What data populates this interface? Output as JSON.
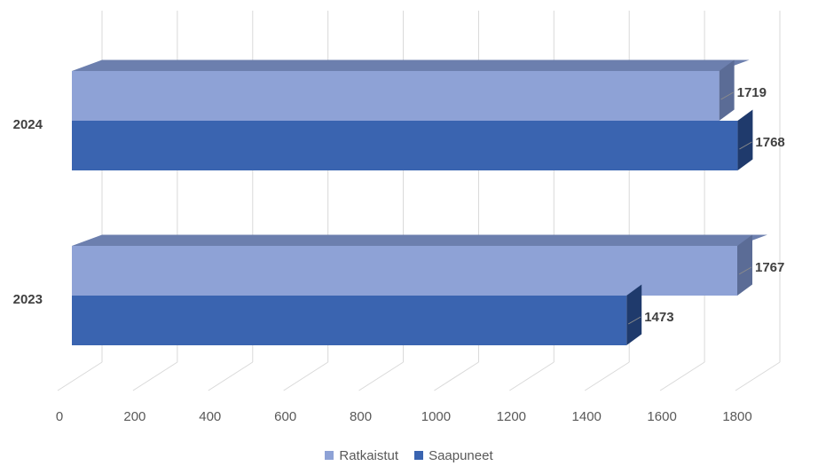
{
  "chart_data": {
    "type": "bar",
    "orientation": "horizontal",
    "style": "3d",
    "categories": [
      "2024",
      "2023"
    ],
    "series": [
      {
        "name": "Ratkaistut",
        "values": [
          1719,
          1767
        ],
        "color": "#8EA2D6",
        "top_color": "#6C7FAE",
        "side_color": "#5B6C96"
      },
      {
        "name": "Saapuneet",
        "values": [
          1768,
          1473
        ],
        "color": "#3A64B0",
        "top_color": "#2E4F8E",
        "side_color": "#1F3A6C"
      }
    ],
    "x_ticks": [
      0,
      200,
      400,
      600,
      800,
      1000,
      1200,
      1400,
      1600,
      1800
    ],
    "xlim": [
      0,
      1800
    ],
    "grid": true,
    "legend_position": "bottom"
  }
}
